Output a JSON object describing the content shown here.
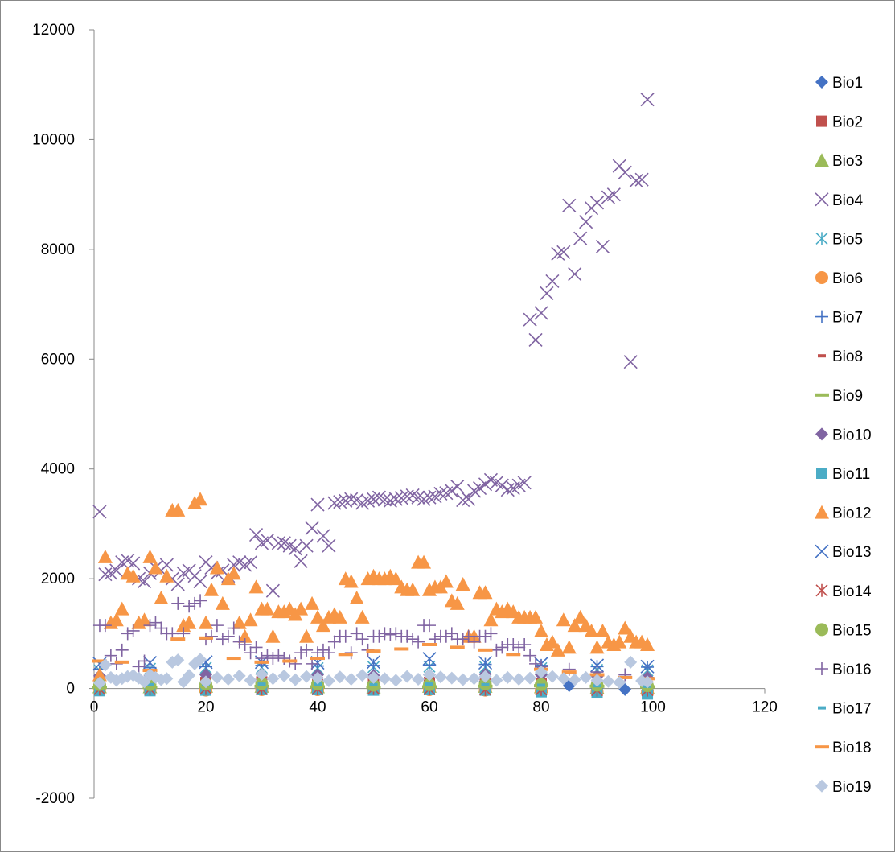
{
  "chart_data": {
    "type": "scatter",
    "title": "",
    "xlabel": "",
    "ylabel": "",
    "xlim": [
      0,
      120
    ],
    "ylim": [
      -2000,
      12000
    ],
    "x_ticks": [
      0,
      20,
      40,
      60,
      80,
      100,
      120
    ],
    "y_ticks": [
      -2000,
      0,
      2000,
      4000,
      6000,
      8000,
      10000,
      12000
    ],
    "grid": false,
    "legend_position": "right",
    "series": [
      {
        "name": "Bio1",
        "color": "#4472C4",
        "marker": "diamond",
        "x": [
          1,
          10,
          20,
          30,
          40,
          50,
          60,
          70,
          80,
          85,
          90,
          95,
          99
        ],
        "y": [
          60,
          70,
          80,
          90,
          100,
          110,
          120,
          130,
          80,
          50,
          0,
          -20,
          -40
        ]
      },
      {
        "name": "Bio2",
        "color": "#C0504D",
        "marker": "square",
        "x": [
          1,
          10,
          20,
          30,
          40,
          50,
          60,
          70,
          80,
          90,
          99
        ],
        "y": [
          90,
          100,
          110,
          120,
          110,
          100,
          110,
          120,
          90,
          60,
          40
        ]
      },
      {
        "name": "Bio3",
        "color": "#9BBB59",
        "marker": "triangle",
        "x": [
          1,
          10,
          20,
          30,
          40,
          50,
          60,
          70,
          80,
          90,
          99
        ],
        "y": [
          30,
          30,
          40,
          40,
          30,
          30,
          40,
          40,
          30,
          20,
          20
        ]
      },
      {
        "name": "Bio4",
        "color": "#8064A2",
        "marker": "x",
        "x": [
          1,
          2,
          3,
          4,
          5,
          6,
          7,
          8,
          9,
          10,
          11,
          12,
          13,
          14,
          15,
          16,
          17,
          18,
          19,
          20,
          21,
          22,
          23,
          24,
          25,
          26,
          27,
          28,
          29,
          30,
          31,
          32,
          33,
          34,
          35,
          36,
          37,
          38,
          39,
          40,
          41,
          42,
          43,
          44,
          45,
          46,
          47,
          48,
          49,
          50,
          51,
          52,
          53,
          54,
          55,
          56,
          57,
          58,
          59,
          60,
          61,
          62,
          63,
          64,
          65,
          66,
          67,
          68,
          69,
          70,
          71,
          72,
          73,
          74,
          75,
          76,
          77,
          78,
          79,
          80,
          81,
          82,
          83,
          84,
          85,
          86,
          87,
          88,
          89,
          90,
          91,
          92,
          93,
          94,
          95,
          96,
          97,
          98,
          99
        ],
        "y": [
          3220,
          2080,
          2100,
          2150,
          2300,
          2330,
          2280,
          2000,
          1950,
          2100,
          2200,
          2150,
          2250,
          2000,
          1900,
          2100,
          2150,
          2050,
          1950,
          2300,
          2200,
          2100,
          2150,
          2050,
          2250,
          2300,
          2250,
          2300,
          2800,
          2650,
          2700,
          1780,
          2650,
          2650,
          2600,
          2550,
          2320,
          2600,
          2920,
          3350,
          2780,
          2600,
          3380,
          3400,
          3420,
          3450,
          3430,
          3380,
          3420,
          3450,
          3480,
          3440,
          3420,
          3450,
          3470,
          3500,
          3520,
          3480,
          3450,
          3480,
          3500,
          3550,
          3560,
          3600,
          3680,
          3430,
          3450,
          3600,
          3650,
          3720,
          3800,
          3750,
          3700,
          3620,
          3650,
          3700,
          3750,
          6720,
          6350,
          6840,
          7200,
          7420,
          7920,
          7950,
          8800,
          7550,
          8200,
          8500,
          8750,
          8850,
          8050,
          8950,
          9000,
          9520,
          9400,
          5950,
          9250,
          9270,
          10730
        ]
      },
      {
        "name": "Bio5",
        "color": "#4BACC6",
        "marker": "star",
        "x": [
          1,
          10,
          20,
          30,
          40,
          50,
          60,
          70,
          80,
          90,
          99
        ],
        "y": [
          330,
          360,
          380,
          380,
          370,
          390,
          400,
          390,
          370,
          340,
          330
        ]
      },
      {
        "name": "Bio6",
        "color": "#F79646",
        "marker": "circle",
        "x": [
          1,
          10,
          20,
          30,
          40,
          50,
          60,
          70,
          80,
          90,
          99
        ],
        "y": [
          -10,
          -20,
          -30,
          -20,
          -20,
          -10,
          -20,
          -30,
          -40,
          -60,
          -80
        ]
      },
      {
        "name": "Bio7",
        "color": "#4472C4",
        "marker": "plus",
        "x": [
          1,
          10,
          20,
          30,
          40,
          50,
          60,
          70,
          80,
          90,
          99
        ],
        "y": [
          350,
          380,
          400,
          420,
          410,
          420,
          430,
          440,
          420,
          400,
          390
        ]
      },
      {
        "name": "Bio8",
        "color": "#C0504D",
        "marker": "dash",
        "x": [
          1,
          10,
          20,
          30,
          40,
          50,
          60,
          70,
          80,
          90,
          99
        ],
        "y": [
          170,
          160,
          160,
          150,
          150,
          140,
          150,
          160,
          170,
          180,
          190
        ]
      },
      {
        "name": "Bio9",
        "color": "#9BBB59",
        "marker": "longdash",
        "x": [
          1,
          10,
          20,
          30,
          40,
          50,
          60,
          70,
          80,
          90,
          99
        ],
        "y": [
          20,
          20,
          30,
          40,
          30,
          20,
          30,
          40,
          50,
          40,
          30
        ]
      },
      {
        "name": "Bio10",
        "color": "#8064A2",
        "marker": "diamond",
        "x": [
          1,
          10,
          20,
          30,
          40,
          50,
          60,
          70,
          80,
          90,
          99
        ],
        "y": [
          230,
          240,
          250,
          260,
          250,
          240,
          250,
          260,
          250,
          220,
          200
        ]
      },
      {
        "name": "Bio11",
        "color": "#4BACC6",
        "marker": "square",
        "x": [
          1,
          10,
          20,
          30,
          40,
          50,
          60,
          70,
          80,
          90,
          99
        ],
        "y": [
          -40,
          -40,
          -30,
          -20,
          -20,
          -30,
          -20,
          -30,
          -60,
          -80,
          -100
        ]
      },
      {
        "name": "Bio12",
        "color": "#F79646",
        "marker": "triangle",
        "x": [
          1,
          2,
          3,
          4,
          5,
          6,
          7,
          8,
          9,
          10,
          11,
          12,
          13,
          14,
          15,
          16,
          17,
          18,
          19,
          20,
          21,
          22,
          23,
          24,
          25,
          26,
          27,
          28,
          29,
          30,
          31,
          32,
          33,
          34,
          35,
          36,
          37,
          38,
          39,
          40,
          41,
          42,
          43,
          44,
          45,
          46,
          47,
          48,
          49,
          50,
          51,
          52,
          53,
          54,
          55,
          56,
          57,
          58,
          59,
          60,
          61,
          62,
          63,
          64,
          65,
          66,
          67,
          68,
          69,
          70,
          71,
          72,
          73,
          74,
          75,
          76,
          77,
          78,
          79,
          80,
          81,
          82,
          83,
          84,
          85,
          86,
          87,
          88,
          89,
          90,
          91,
          92,
          93,
          94,
          95,
          96,
          97,
          98,
          99
        ],
        "y": [
          250,
          2400,
          1200,
          1250,
          1450,
          2100,
          2050,
          1200,
          1250,
          2400,
          2200,
          1650,
          2050,
          3250,
          3250,
          1150,
          1200,
          3380,
          3450,
          1200,
          1800,
          2200,
          1550,
          2000,
          2100,
          1200,
          950,
          1250,
          1850,
          1450,
          1450,
          950,
          1400,
          1400,
          1450,
          1350,
          1450,
          950,
          1550,
          1300,
          1150,
          1300,
          1350,
          1300,
          2000,
          1950,
          1650,
          1300,
          2000,
          2050,
          2000,
          2000,
          2050,
          2000,
          1850,
          1800,
          1800,
          2300,
          2300,
          1800,
          1850,
          1850,
          1950,
          1600,
          1550,
          1900,
          950,
          950,
          1750,
          1750,
          1250,
          1450,
          1400,
          1450,
          1400,
          1300,
          1300,
          1300,
          1300,
          1050,
          800,
          850,
          700,
          1250,
          750,
          1150,
          1300,
          1150,
          1050,
          750,
          1050,
          850,
          800,
          850,
          1100,
          950,
          850,
          850,
          800
        ]
      },
      {
        "name": "Bio13",
        "color": "#4472C4",
        "marker": "x",
        "x": [
          1,
          10,
          20,
          30,
          40,
          50,
          60,
          70,
          80,
          90,
          99
        ],
        "y": [
          450,
          470,
          480,
          480,
          470,
          480,
          540,
          470,
          450,
          420,
          400
        ]
      },
      {
        "name": "Bio14",
        "color": "#C0504D",
        "marker": "star",
        "x": [
          1,
          10,
          20,
          30,
          40,
          50,
          60,
          70,
          80,
          90,
          99
        ],
        "y": [
          -10,
          -10,
          0,
          -10,
          -10,
          0,
          -10,
          -20,
          -20,
          -30,
          -30
        ]
      },
      {
        "name": "Bio15",
        "color": "#9BBB59",
        "marker": "circle",
        "x": [
          1,
          10,
          20,
          30,
          40,
          50,
          60,
          70,
          80,
          90,
          99
        ],
        "y": [
          70,
          70,
          80,
          90,
          80,
          60,
          70,
          80,
          70,
          60,
          50
        ]
      },
      {
        "name": "Bio16",
        "color": "#8064A2",
        "marker": "plus",
        "x": [
          1,
          2,
          3,
          4,
          5,
          6,
          7,
          8,
          9,
          10,
          11,
          12,
          13,
          14,
          15,
          16,
          17,
          18,
          19,
          20,
          21,
          22,
          23,
          24,
          25,
          26,
          27,
          28,
          29,
          30,
          31,
          32,
          33,
          34,
          35,
          36,
          37,
          38,
          39,
          40,
          41,
          42,
          43,
          44,
          45,
          46,
          47,
          48,
          49,
          50,
          51,
          52,
          53,
          54,
          55,
          56,
          57,
          58,
          59,
          60,
          61,
          62,
          63,
          64,
          65,
          66,
          67,
          68,
          69,
          70,
          71,
          72,
          73,
          74,
          75,
          76,
          77,
          78,
          79,
          80,
          85,
          90,
          95,
          99
        ],
        "y": [
          1150,
          1150,
          600,
          450,
          700,
          1000,
          1050,
          400,
          500,
          1150,
          1200,
          1100,
          1000,
          1000,
          1550,
          1000,
          1500,
          1550,
          1600,
          900,
          950,
          1150,
          900,
          950,
          1100,
          850,
          800,
          650,
          750,
          550,
          600,
          550,
          600,
          550,
          500,
          450,
          650,
          700,
          450,
          650,
          700,
          650,
          850,
          950,
          950,
          650,
          1000,
          900,
          700,
          950,
          950,
          1000,
          980,
          1000,
          950,
          950,
          900,
          850,
          1150,
          1150,
          900,
          950,
          950,
          1000,
          900,
          900,
          950,
          850,
          950,
          950,
          1000,
          700,
          750,
          800,
          800,
          750,
          800,
          600,
          450,
          400,
          350,
          300,
          250,
          200
        ]
      },
      {
        "name": "Bio17",
        "color": "#4BACC6",
        "marker": "dash",
        "x": [
          1,
          10,
          20,
          30,
          40,
          50,
          60,
          70,
          80,
          90,
          99
        ],
        "y": [
          60,
          70,
          70,
          80,
          80,
          70,
          80,
          70,
          60,
          50,
          40
        ]
      },
      {
        "name": "Bio18",
        "color": "#F79646",
        "marker": "longdash",
        "x": [
          1,
          5,
          10,
          15,
          20,
          25,
          30,
          35,
          40,
          45,
          50,
          55,
          60,
          65,
          70,
          75,
          80,
          85,
          90,
          95,
          99
        ],
        "y": [
          500,
          480,
          330,
          900,
          920,
          550,
          480,
          500,
          550,
          620,
          680,
          720,
          800,
          750,
          700,
          620,
          350,
          300,
          250,
          200,
          180
        ]
      },
      {
        "name": "Bio19",
        "color": "#B9C8E0",
        "marker": "diamond",
        "x": [
          1,
          2,
          3,
          4,
          5,
          6,
          7,
          8,
          9,
          10,
          11,
          12,
          13,
          14,
          15,
          16,
          17,
          18,
          19,
          20,
          22,
          24,
          26,
          28,
          30,
          32,
          34,
          36,
          38,
          40,
          42,
          44,
          46,
          48,
          50,
          52,
          54,
          56,
          58,
          60,
          62,
          64,
          66,
          68,
          70,
          72,
          74,
          76,
          78,
          80,
          82,
          84,
          86,
          88,
          90,
          92,
          94,
          96,
          98,
          99
        ],
        "y": [
          100,
          430,
          200,
          150,
          180,
          220,
          240,
          190,
          120,
          250,
          200,
          160,
          180,
          480,
          520,
          120,
          240,
          450,
          530,
          120,
          200,
          170,
          230,
          150,
          260,
          180,
          230,
          160,
          220,
          190,
          140,
          210,
          170,
          240,
          200,
          180,
          150,
          220,
          170,
          250,
          210,
          190,
          160,
          180,
          220,
          150,
          200,
          170,
          190,
          300,
          220,
          180,
          160,
          200,
          150,
          130,
          110,
          480,
          140,
          120
        ]
      }
    ]
  }
}
